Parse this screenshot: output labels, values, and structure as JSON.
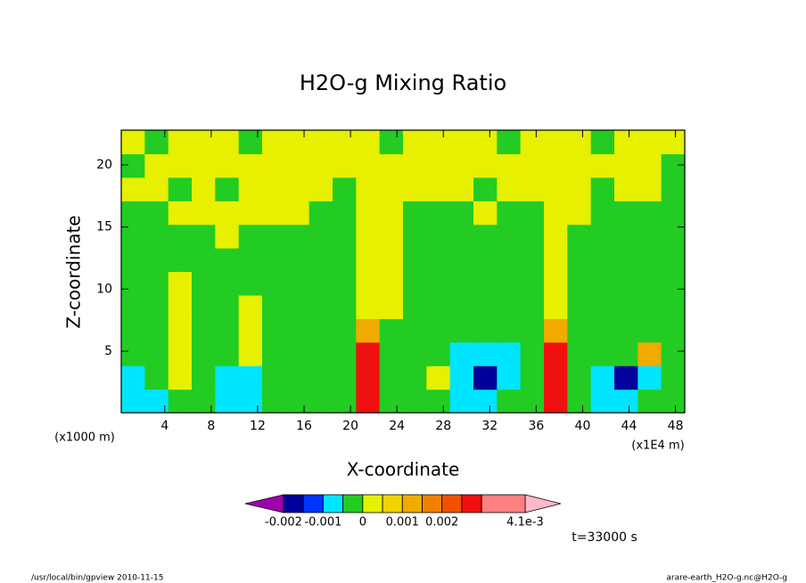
{
  "chart_data": {
    "type": "contour",
    "title": "H2O-g Mixing Ratio",
    "xlabel": "X-coordinate",
    "ylabel": "Z-coordinate",
    "x_unit": "(x1000 m)",
    "x_unit_right": "(x1E4 m)",
    "time_label": "t=33000 s",
    "footer_left": "/usr/local/bin/gpview  2010-11-15",
    "footer_right": "arare-earth_H2O-g.nc@H2O-g",
    "xlim": [
      0.25,
      48.8
    ],
    "ylim": [
      0.05,
      22.8
    ],
    "xticks": [
      4,
      8,
      12,
      16,
      20,
      24,
      28,
      32,
      36,
      40,
      44,
      48
    ],
    "yticks": [
      5,
      10,
      15,
      20
    ],
    "z": [
      [
        -0.0008,
        -0.0008,
        -0.0002,
        -0.0002,
        -0.0008,
        -0.0008,
        -0.0002,
        -0.0002,
        -0.0002,
        -0.0002,
        0.0027,
        -0.0002,
        -0.0002,
        -0.0002,
        -0.0008,
        -0.0008,
        -0.0002,
        -0.0002,
        0.0027,
        -0.0002,
        -0.0008,
        -0.0008,
        -0.0002,
        -0.0002
      ],
      [
        -0.0008,
        -0.0002,
        0.0003,
        -0.0002,
        -0.0008,
        -0.0008,
        -0.0002,
        -0.0002,
        -0.0002,
        -0.0002,
        0.0027,
        -0.0002,
        -0.0002,
        0.0003,
        -0.0008,
        -0.0018,
        -0.0008,
        -0.0002,
        0.0027,
        -0.0002,
        -0.0008,
        -0.0018,
        -0.0008,
        -0.0002
      ],
      [
        -0.0002,
        -0.0002,
        0.0003,
        -0.0002,
        -0.0002,
        0.0003,
        -0.0002,
        -0.0002,
        -0.0002,
        -0.0002,
        0.0027,
        -0.0002,
        -0.0002,
        -0.0002,
        -0.0008,
        -0.0008,
        -0.0008,
        -0.0002,
        0.0027,
        -0.0002,
        -0.0002,
        -0.0002,
        0.0012,
        -0.0002
      ],
      [
        -0.0002,
        -0.0002,
        0.0003,
        -0.0002,
        -0.0002,
        0.0003,
        -0.0002,
        -0.0002,
        -0.0002,
        -0.0002,
        0.0012,
        -0.0002,
        -0.0002,
        -0.0002,
        -0.0002,
        -0.0002,
        -0.0002,
        -0.0002,
        0.0012,
        -0.0002,
        -0.0002,
        -0.0002,
        -0.0002,
        -0.0002
      ],
      [
        -0.0002,
        -0.0002,
        0.0003,
        -0.0002,
        -0.0002,
        0.0003,
        -0.0002,
        -0.0002,
        -0.0002,
        -0.0002,
        0.0003,
        0.0003,
        -0.0002,
        -0.0002,
        -0.0002,
        -0.0002,
        -0.0002,
        -0.0002,
        0.0003,
        -0.0002,
        -0.0002,
        -0.0002,
        -0.0002,
        -0.0002
      ],
      [
        -0.0002,
        -0.0002,
        0.0003,
        -0.0002,
        -0.0002,
        -0.0002,
        -0.0002,
        -0.0002,
        -0.0002,
        -0.0002,
        0.0003,
        0.0003,
        -0.0002,
        -0.0002,
        -0.0002,
        -0.0002,
        -0.0002,
        -0.0002,
        0.0003,
        -0.0002,
        -0.0002,
        -0.0002,
        -0.0002,
        -0.0002
      ],
      [
        -0.0002,
        -0.0002,
        -0.0002,
        -0.0002,
        -0.0002,
        -0.0002,
        -0.0002,
        -0.0002,
        -0.0002,
        -0.0002,
        0.0003,
        0.0003,
        -0.0002,
        -0.0002,
        -0.0002,
        -0.0002,
        -0.0002,
        -0.0002,
        0.0003,
        -0.0002,
        -0.0002,
        -0.0002,
        -0.0002,
        -0.0002
      ],
      [
        -0.0002,
        -0.0002,
        -0.0002,
        -0.0002,
        0.0003,
        -0.0002,
        -0.0002,
        -0.0002,
        -0.0002,
        -0.0002,
        0.0003,
        0.0003,
        -0.0002,
        -0.0002,
        -0.0002,
        -0.0002,
        -0.0002,
        -0.0002,
        0.0003,
        -0.0002,
        -0.0002,
        -0.0002,
        -0.0002,
        -0.0002
      ],
      [
        -0.0002,
        -0.0002,
        0.0003,
        0.0003,
        0.0003,
        0.0003,
        0.0003,
        0.0003,
        -0.0002,
        -0.0002,
        0.0003,
        0.0003,
        -0.0002,
        -0.0002,
        -0.0002,
        0.0003,
        -0.0002,
        -0.0002,
        0.0003,
        0.0003,
        -0.0002,
        -0.0002,
        -0.0002,
        -0.0002
      ],
      [
        0.0003,
        0.0003,
        -0.0002,
        0.0003,
        -0.0002,
        0.0003,
        0.0003,
        0.0003,
        0.0003,
        -0.0002,
        0.0003,
        0.0003,
        0.0003,
        0.0003,
        0.0003,
        -0.0002,
        0.0003,
        0.0003,
        0.0003,
        0.0003,
        -0.0002,
        0.0003,
        0.0003,
        -0.0002
      ],
      [
        -0.0002,
        0.0003,
        0.0003,
        0.0003,
        0.0003,
        0.0003,
        0.0003,
        0.0003,
        0.0003,
        0.0003,
        0.0003,
        0.0003,
        0.0003,
        0.0003,
        0.0003,
        0.0003,
        0.0003,
        0.0003,
        0.0003,
        0.0003,
        0.0003,
        0.0003,
        0.0003,
        -0.0002
      ],
      [
        0.0003,
        -0.0002,
        0.0003,
        0.0003,
        0.0003,
        -0.0002,
        0.0003,
        0.0003,
        0.0003,
        0.0003,
        0.0003,
        -0.0002,
        0.0003,
        0.0003,
        0.0003,
        0.0003,
        -0.0002,
        0.0003,
        0.0003,
        0.0003,
        -0.0002,
        0.0003,
        0.0003,
        0.0003
      ]
    ],
    "levels": [
      -0.002,
      -0.0015,
      -0.001,
      -0.0005,
      0,
      0.0005,
      0.001,
      0.0015,
      0.002,
      0.0025,
      0.003,
      0.0041
    ],
    "colors": [
      "#00009b",
      "#0033ff",
      "#00e5ff",
      "#22cc22",
      "#e6f000",
      "#f0d400",
      "#f0aa00",
      "#f08000",
      "#f05000",
      "#f01010",
      "#ff8080"
    ],
    "under_color": "#a000b0",
    "over_color": "#ffb8c8",
    "colorbar_ticks": [
      -0.002,
      -0.001,
      0,
      0.001,
      0.002,
      {
        "value": 0.0041,
        "label": "4.1e-3"
      }
    ]
  }
}
